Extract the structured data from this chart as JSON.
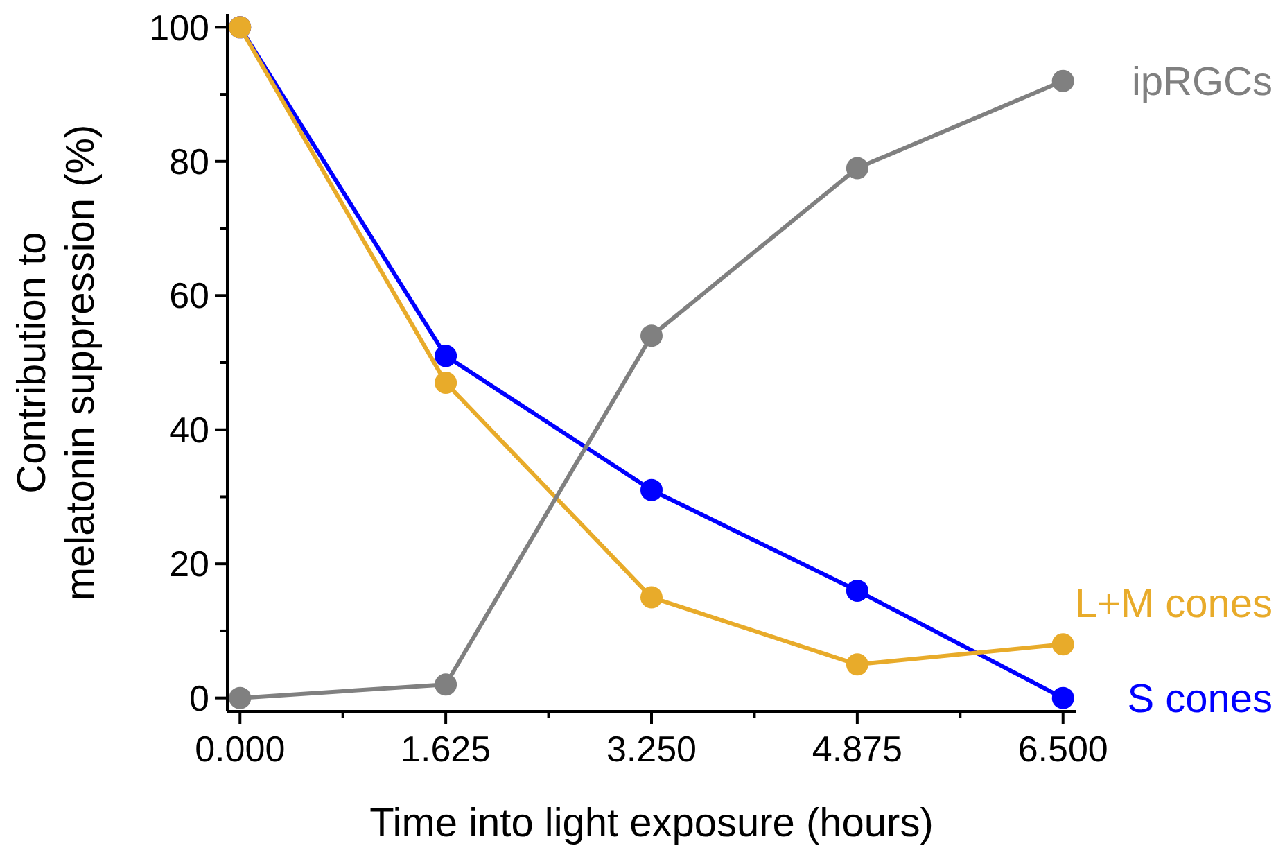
{
  "chart_data": {
    "type": "line",
    "xlabel": "Time into light exposure (hours)",
    "ylabel": "Contribution to\nmelatonin suppression (%)",
    "x": [
      0,
      1.625,
      3.25,
      4.875,
      6.5
    ],
    "series": [
      {
        "name": "ipRGCs",
        "color": "#808080",
        "values": [
          0,
          2,
          54,
          79,
          92
        ]
      },
      {
        "name": "L+M cones",
        "color": "#e8ab2a",
        "values": [
          100,
          47,
          15,
          5,
          8
        ]
      },
      {
        "name": "S cones",
        "color": "#0000ff",
        "values": [
          100,
          51,
          31,
          16,
          0
        ]
      }
    ],
    "xlim": [
      -0.1,
      6.6
    ],
    "ylim": [
      -2,
      102
    ],
    "xticks": [
      {
        "value": 0,
        "label": "0.000"
      },
      {
        "value": 0.8125,
        "label": null
      },
      {
        "value": 1.625,
        "label": "1.625"
      },
      {
        "value": 2.4375,
        "label": null
      },
      {
        "value": 3.25,
        "label": "3.250"
      },
      {
        "value": 4.0625,
        "label": null
      },
      {
        "value": 4.875,
        "label": "4.875"
      },
      {
        "value": 5.6875,
        "label": null
      },
      {
        "value": 6.5,
        "label": "6.500"
      }
    ],
    "yticks": [
      0,
      {
        "value": 10,
        "label": null
      },
      20,
      {
        "value": 30,
        "label": null
      },
      40,
      {
        "value": 50,
        "label": null
      },
      60,
      {
        "value": 70,
        "label": null
      },
      80,
      {
        "value": 90,
        "label": null
      },
      100
    ],
    "grid": false,
    "marker": "circle",
    "line_style": "solid"
  }
}
